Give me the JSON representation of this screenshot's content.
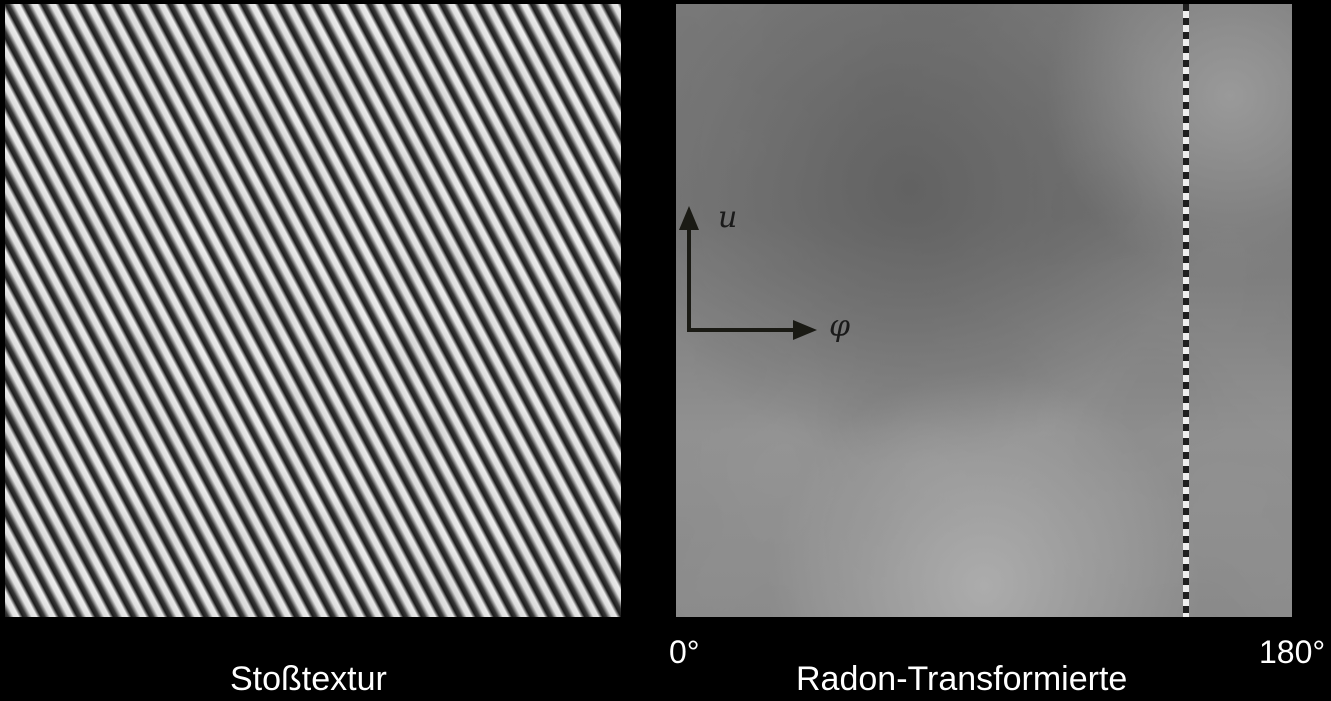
{
  "captions": {
    "left": "Stoßtextur",
    "right": "Radon-Transformierte"
  },
  "axis": {
    "u_label": "u",
    "phi_label": "φ",
    "tick_start": "0°",
    "tick_end": "180°"
  },
  "colors": {
    "background": "#000000",
    "caption_text": "#ffffff",
    "arrow": "#1a1a14",
    "radon_base": "#8a8a8a"
  }
}
